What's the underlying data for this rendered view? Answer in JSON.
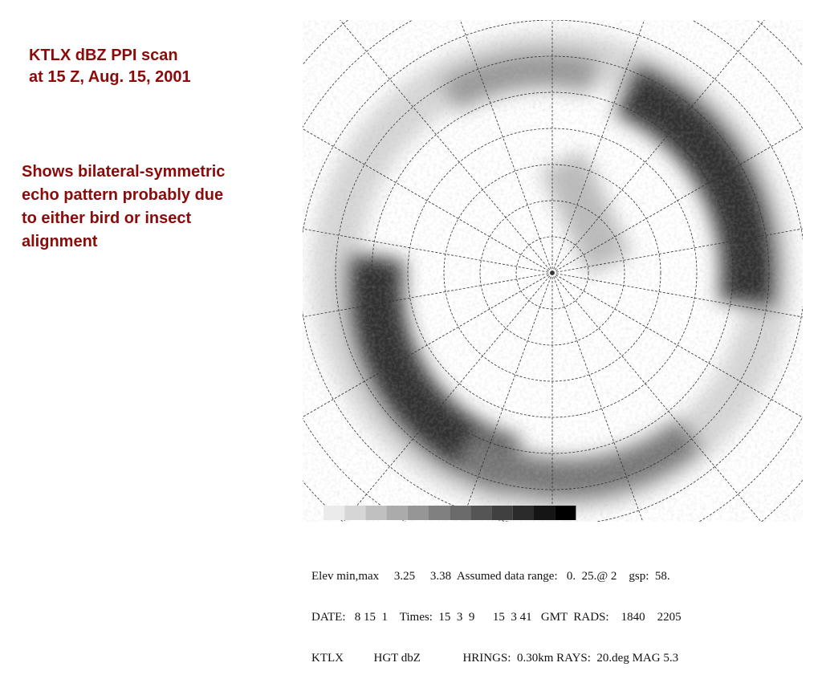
{
  "header": {
    "title_lines": [
      "KTLX dBZ PPI scan",
      "at 15 Z, Aug. 15, 2001"
    ]
  },
  "description": {
    "lines": [
      "Shows bilateral-symmetric",
      "echo pattern probably due",
      "to either bird or insect",
      "alignment"
    ]
  },
  "radar_info": {
    "lines": [
      "Elev min,max     3.25     3.38  Assumed data range:   0.  25.@ 2    gsp:  58.",
      "DATE:   8 15  1    Times:  15  3  9      15  3 41   GMT  RADS:    1840    2205",
      "KTLX          HGT dbZ              HRINGS:  0.30km RAYS:  20.deg MAG 5.3"
    ]
  }
}
